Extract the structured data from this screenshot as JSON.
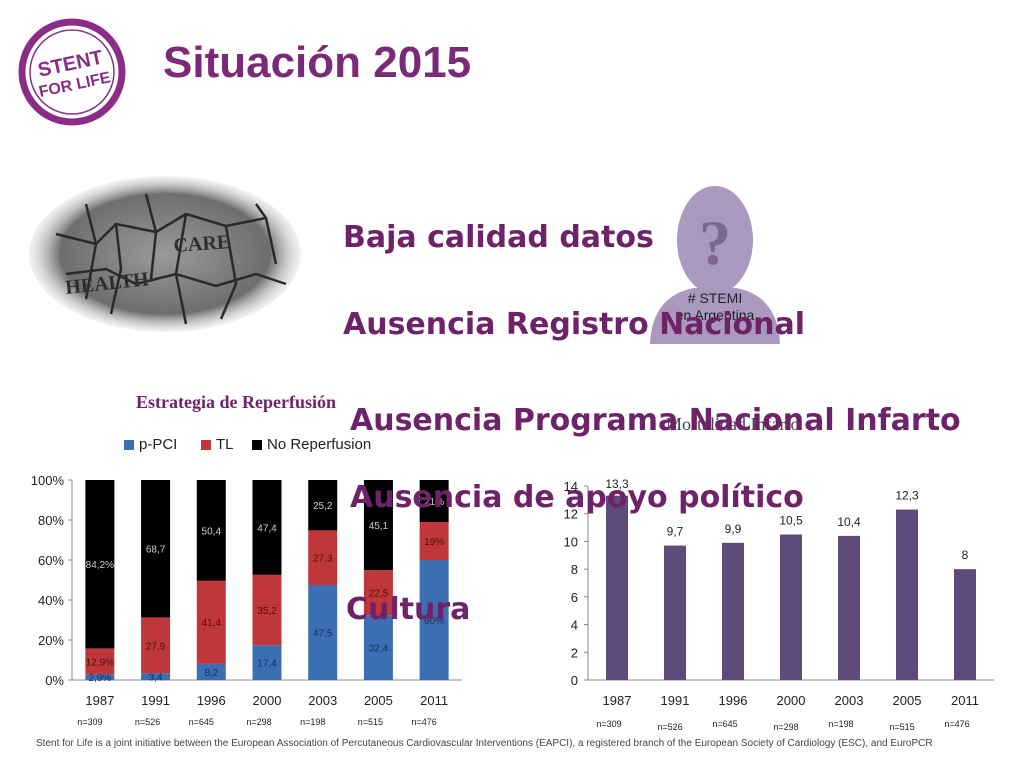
{
  "title": "Situación 2015",
  "logo": {
    "text_line1": "STENT",
    "text_line2": "FOR LIFE",
    "color": "#8b2d86"
  },
  "health_image": {
    "word1": "HEALTH",
    "word2": "CARE"
  },
  "question_icon": {
    "symbol": "?",
    "caption_line1": "# STEMI",
    "caption_line2": "en Argentina"
  },
  "bullets": [
    "Baja calidad datos",
    "Ausencia Registro Nacional",
    "Ausencia Programa Nacional Infarto",
    "Ausencia de apoyo político",
    "Cultura"
  ],
  "chart_data": [
    {
      "type": "bar",
      "stacked": true,
      "title": "Estrategia de Reperfusión",
      "categories": [
        "1987",
        "1991",
        "1996",
        "2000",
        "2003",
        "2005",
        "2011"
      ],
      "sample_sizes": [
        "n=309",
        "n=526",
        "n=645",
        "n=298",
        "n=198",
        "n=515",
        "n=476"
      ],
      "series": [
        {
          "name": "p-PCI",
          "color": "#3c6eb4",
          "values": [
            2.9,
            3.4,
            8.2,
            17.4,
            47.5,
            32.4,
            60
          ],
          "labels": [
            "2,9%",
            "3,4",
            "8,2",
            "17,4",
            "47,5",
            "32,4",
            "60%"
          ]
        },
        {
          "name": "TL",
          "color": "#c0373a",
          "values": [
            12.9,
            27.9,
            41.4,
            35.2,
            27.3,
            22.5,
            19
          ],
          "labels": [
            "12,9%",
            "27,9",
            "41,4",
            "35,2",
            "27,3",
            "22,5",
            "19%"
          ]
        },
        {
          "name": "No Reperfusion",
          "color": "#000000",
          "values": [
            84.2,
            68.7,
            50.4,
            47.4,
            25.2,
            45.1,
            21
          ],
          "labels": [
            "84,2%",
            "68,7",
            "50,4",
            "47,4",
            "25,2",
            "45,1",
            "21%"
          ]
        }
      ],
      "yticks": [
        "0%",
        "20%",
        "40%",
        "60%",
        "80%",
        "100%"
      ],
      "ylim": [
        0,
        100
      ],
      "legend": "top"
    },
    {
      "type": "bar",
      "title": "Mortalidad Infarto",
      "categories": [
        "1987",
        "1991",
        "1996",
        "2000",
        "2003",
        "2005",
        "2011"
      ],
      "sample_sizes": [
        "n=309",
        "n=526",
        "n=645",
        "n=298",
        "n=198",
        "n=515",
        "n=476"
      ],
      "values": [
        13.3,
        9.7,
        9.9,
        10.5,
        10.4,
        12.3,
        8
      ],
      "labels": [
        "13,3",
        "9,7",
        "9,9",
        "10,5",
        "10,4",
        "12,3",
        "8"
      ],
      "color": "#5f4a7e",
      "yticks": [
        "0",
        "2",
        "4",
        "6",
        "8",
        "10",
        "12",
        "14"
      ],
      "ylim": [
        0,
        14
      ]
    }
  ],
  "footer": "Stent for Life is a joint initiative between the European Association of Percutaneous Cardiovascular Interventions (EAPCI), a registered branch of the European Society of Cardiology (ESC), and EuroPCR"
}
